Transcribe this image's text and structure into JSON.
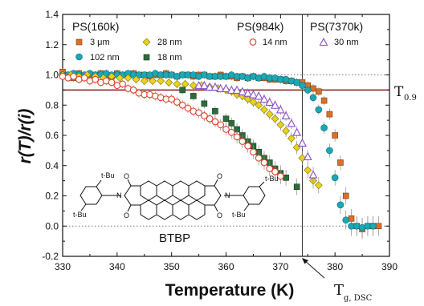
{
  "chart_data": {
    "type": "scatter",
    "xlabel": "Temperature (K)",
    "ylabel": "r(T)/r(i)",
    "xlim": [
      330,
      390
    ],
    "ylim": [
      -0.2,
      1.4
    ],
    "xticks": [
      330,
      340,
      350,
      360,
      370,
      380,
      390
    ],
    "yticks": [
      -0.2,
      0.0,
      0.2,
      0.4,
      0.6,
      0.8,
      1.0,
      1.2,
      1.4
    ],
    "xtick_labels": [
      "330",
      "340",
      "350",
      "360",
      "370",
      "380",
      "390"
    ],
    "ytick_labels": [
      "-0.2",
      "0.0",
      "0.2",
      "0.4",
      "0.6",
      "0.8",
      "1.0",
      "1.2",
      "1.4"
    ],
    "hlines": [
      {
        "y": 1.0,
        "style": "dotted",
        "color": "#777777"
      },
      {
        "y": 0.0,
        "style": "dotted",
        "color": "#777777"
      },
      {
        "y": 0.9,
        "style": "solid",
        "color": "#8b1a1a",
        "label": "T",
        "label_sub": "0.9"
      }
    ],
    "vline": {
      "x": 374.0,
      "label": "T",
      "label_sub": "g, DSC"
    },
    "legend_groups": [
      {
        "title": "PS(160k)"
      },
      {
        "title": "PS(984k)"
      },
      {
        "title": "PS(7370k)"
      }
    ],
    "series": [
      {
        "name": "3 μm",
        "group": "PS(160k)",
        "marker": "square",
        "color": "#d9702a",
        "filled": true,
        "x": [
          330,
          331,
          332,
          333,
          334,
          335,
          336,
          337,
          338,
          339,
          340,
          341,
          342,
          343,
          344,
          345,
          346,
          347,
          348,
          349,
          350,
          351,
          352,
          353,
          354,
          355,
          356,
          357,
          358,
          359,
          360,
          361,
          362,
          363,
          364,
          365,
          366,
          367,
          368,
          369,
          370,
          371,
          372,
          373,
          374,
          375,
          376,
          377,
          378,
          379,
          380,
          381,
          382,
          383,
          384,
          385,
          386,
          387,
          388
        ],
        "y": [
          1.02,
          1.0,
          0.98,
          1.01,
          0.99,
          1.0,
          1.0,
          1.01,
          1.0,
          0.99,
          1.01,
          1.0,
          1.0,
          1.01,
          1.0,
          1.0,
          0.99,
          1.0,
          1.0,
          1.01,
          1.0,
          0.99,
          1.0,
          1.0,
          0.99,
          1.0,
          1.0,
          0.99,
          0.99,
          1.0,
          0.99,
          0.99,
          0.98,
          0.99,
          0.98,
          0.99,
          0.98,
          0.98,
          0.97,
          0.97,
          0.97,
          0.96,
          0.96,
          0.95,
          0.95,
          0.93,
          0.91,
          0.89,
          0.83,
          0.74,
          0.6,
          0.42,
          0.2,
          0.05,
          0.0,
          -0.02,
          0.0,
          0.0,
          0.0
        ]
      },
      {
        "name": "102 nm",
        "group": "PS(160k)",
        "marker": "circle",
        "color": "#1ca7b5",
        "filled": true,
        "x": [
          330,
          331,
          332,
          333,
          334,
          335,
          336,
          337,
          338,
          339,
          340,
          341,
          342,
          343,
          344,
          345,
          346,
          347,
          348,
          349,
          350,
          351,
          352,
          353,
          354,
          355,
          356,
          357,
          358,
          359,
          360,
          361,
          362,
          363,
          364,
          365,
          366,
          367,
          368,
          369,
          370,
          371,
          372,
          373,
          374,
          375,
          376,
          377,
          378,
          379,
          380,
          381,
          382,
          383,
          384,
          385,
          386,
          387
        ],
        "y": [
          1.0,
          1.0,
          1.01,
          1.0,
          1.0,
          1.01,
          1.0,
          1.0,
          1.01,
          1.0,
          1.0,
          1.0,
          1.01,
          1.0,
          1.0,
          1.0,
          1.0,
          1.01,
          1.0,
          1.0,
          1.0,
          0.99,
          1.0,
          1.0,
          1.0,
          0.99,
          1.0,
          0.99,
          0.99,
          0.99,
          0.99,
          1.0,
          0.99,
          0.99,
          0.98,
          0.99,
          0.98,
          0.99,
          0.98,
          0.98,
          0.97,
          0.97,
          0.96,
          0.95,
          0.93,
          0.9,
          0.85,
          0.77,
          0.65,
          0.5,
          0.32,
          0.14,
          0.04,
          0.0,
          0.0,
          -0.01,
          0.0,
          0.0
        ]
      },
      {
        "name": "28 nm",
        "group": "PS(160k)",
        "marker": "diamond",
        "color": "#e8d21c",
        "filled": true,
        "x": [
          330,
          331.5,
          333,
          334.5,
          336,
          337.5,
          339,
          340.5,
          342,
          343.5,
          345,
          346.5,
          348,
          349.5,
          351,
          352.5,
          354,
          355.5,
          357,
          358.5,
          360,
          361,
          362,
          363,
          364,
          365,
          366,
          367,
          368,
          369,
          370,
          371,
          372,
          373,
          374,
          375,
          376,
          377
        ],
        "y": [
          1.0,
          1.0,
          0.99,
          1.0,
          0.99,
          0.98,
          0.99,
          0.98,
          0.98,
          0.97,
          0.96,
          0.96,
          0.96,
          0.95,
          0.94,
          0.94,
          0.93,
          0.93,
          0.92,
          0.91,
          0.9,
          0.89,
          0.87,
          0.86,
          0.84,
          0.82,
          0.8,
          0.77,
          0.74,
          0.71,
          0.67,
          0.63,
          0.58,
          0.52,
          0.45,
          0.37,
          0.3,
          0.27
        ]
      },
      {
        "name": "18 nm",
        "group": "PS(160k)",
        "marker": "square",
        "color": "#2e6b3a",
        "filled": true,
        "x": [
          352,
          354,
          356,
          358,
          360,
          361,
          362,
          363,
          364,
          365,
          366,
          367,
          368,
          369,
          370,
          371,
          373
        ],
        "y": [
          0.9,
          0.86,
          0.81,
          0.76,
          0.71,
          0.68,
          0.64,
          0.6,
          0.56,
          0.53,
          0.49,
          0.45,
          0.42,
          0.38,
          0.35,
          0.32,
          0.26
        ]
      },
      {
        "name": "14 nm",
        "group": "PS(984k)",
        "marker": "circle",
        "color": "#e0402a",
        "filled": false,
        "x": [
          330,
          331,
          332,
          333,
          334,
          335,
          336,
          337,
          338,
          339,
          340,
          341,
          342,
          343,
          344,
          345,
          346,
          347,
          348,
          349,
          350,
          351,
          352,
          353,
          354,
          355,
          356,
          357,
          358,
          359,
          360,
          361,
          362,
          363,
          364,
          365,
          366,
          367,
          368,
          369,
          370
        ],
        "y": [
          0.99,
          0.98,
          0.99,
          0.97,
          0.98,
          0.96,
          0.97,
          0.95,
          0.96,
          0.95,
          0.93,
          0.94,
          0.91,
          0.9,
          0.88,
          0.87,
          0.87,
          0.86,
          0.85,
          0.84,
          0.84,
          0.82,
          0.8,
          0.78,
          0.76,
          0.75,
          0.73,
          0.71,
          0.69,
          0.67,
          0.64,
          0.62,
          0.59,
          0.56,
          0.53,
          0.49,
          0.45,
          0.42,
          0.38,
          0.36,
          0.33
        ]
      },
      {
        "name": "30 nm",
        "group": "PS(7370k)",
        "marker": "triangle",
        "color": "#8a4fc8",
        "filled": false,
        "x": [
          355,
          356,
          357,
          358,
          359,
          360,
          361,
          362,
          363,
          364,
          365,
          366,
          367,
          368,
          369,
          370,
          371,
          372,
          373,
          374,
          375,
          376
        ],
        "y": [
          0.93,
          0.93,
          0.92,
          0.92,
          0.91,
          0.91,
          0.9,
          0.9,
          0.89,
          0.88,
          0.87,
          0.86,
          0.84,
          0.82,
          0.8,
          0.77,
          0.73,
          0.68,
          0.62,
          0.55,
          0.46,
          0.34
        ]
      }
    ],
    "structure_label": "BTBP",
    "structure_substituents": [
      "t-Bu",
      "t-Bu",
      "t-Bu",
      "t-Bu"
    ],
    "structure_atoms": [
      "O",
      "O",
      "O",
      "O",
      "N",
      "N"
    ]
  }
}
